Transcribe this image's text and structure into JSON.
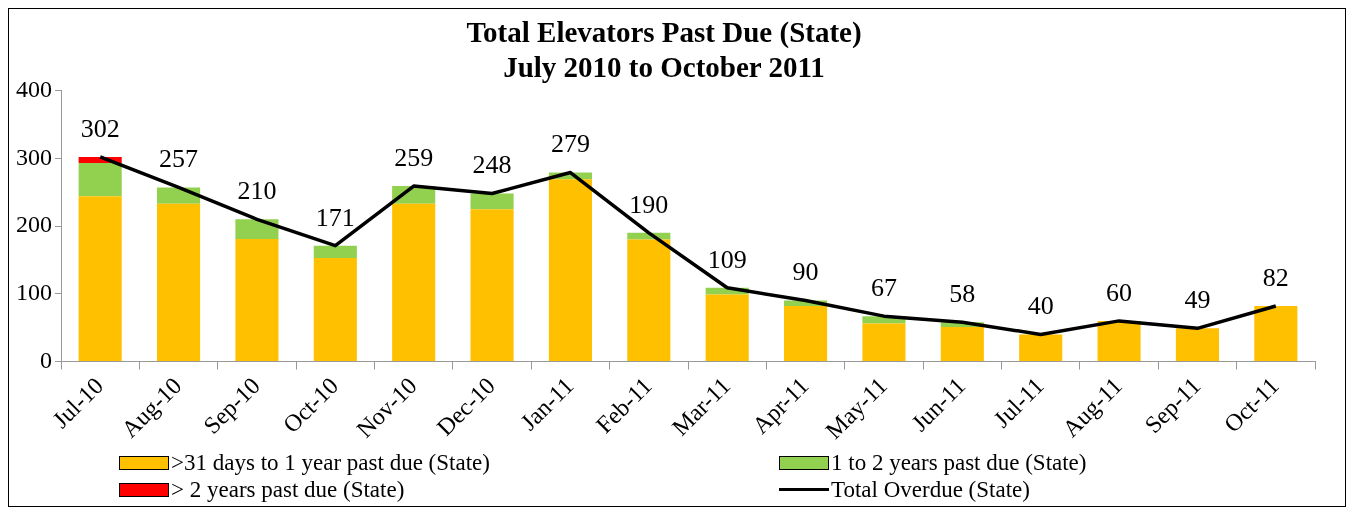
{
  "chart_data": {
    "type": "bar",
    "title": "Total Elevators Past Due (State)",
    "subtitle": "July 2010 to October 2011",
    "categories": [
      "Jul-10",
      "Aug-10",
      "Sep-10",
      "Oct-10",
      "Nov-10",
      "Dec-10",
      "Jan-11",
      "Feb-11",
      "Mar-11",
      "Apr-11",
      "May-11",
      "Jun-11",
      "Jul-11",
      "Aug-11",
      "Sep-11",
      "Oct-11"
    ],
    "stacked": true,
    "series": [
      {
        "name": ">31 days to 1 year past due (State)",
        "color": "#ffc000",
        "values": [
          244,
          233,
          181,
          153,
          233,
          225,
          269,
          180,
          99,
          82,
          56,
          51,
          40,
          60,
          49,
          82
        ]
      },
      {
        "name": "1 to 2 years past due (State)",
        "color": "#92d050",
        "values": [
          49,
          24,
          29,
          18,
          26,
          23,
          10,
          10,
          10,
          8,
          11,
          7,
          0,
          0,
          0,
          0
        ]
      },
      {
        "name": "> 2 years past due (State)",
        "color": "#ff0000",
        "values": [
          9,
          0,
          0,
          0,
          0,
          0,
          0,
          0,
          0,
          0,
          0,
          0,
          0,
          0,
          0,
          0
        ]
      },
      {
        "name": "Total Overdue (State)",
        "type": "line",
        "color": "#000000",
        "marker": "none",
        "values": [
          302,
          257,
          210,
          171,
          259,
          248,
          279,
          190,
          109,
          90,
          67,
          58,
          40,
          60,
          49,
          82
        ],
        "value_labels": [
          "302",
          "257",
          "210",
          "171",
          "259",
          "248",
          "279",
          "190",
          "109",
          "90",
          "67",
          "58",
          "40",
          "60",
          "49",
          "82"
        ]
      }
    ],
    "ylim": [
      0,
      400
    ],
    "yticks": [
      0,
      100,
      200,
      300,
      400
    ],
    "grid": false,
    "legend": "bottom"
  }
}
